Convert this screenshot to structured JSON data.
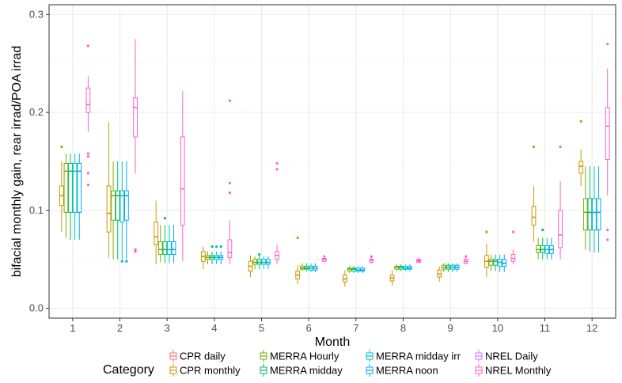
{
  "chart_data": {
    "type": "box",
    "xlabel": "Month",
    "ylabel": "bifacial monthly gain, rear irrad/POA irrad",
    "x_categories": [
      "1",
      "2",
      "3",
      "4",
      "5",
      "6",
      "7",
      "8",
      "9",
      "10",
      "11",
      "12"
    ],
    "ylim": [
      -0.01,
      0.31
    ],
    "y_ticks": [
      0.0,
      0.1,
      0.2,
      0.3
    ],
    "y_tick_labels": [
      "0.0",
      "0.1",
      "0.2",
      "0.3"
    ],
    "grid": true,
    "legend": {
      "title": "Category",
      "position": "bottom",
      "entries": [
        "CPR daily",
        "CPR monthly",
        "MERRA Hourly",
        "MERRA midday",
        "MERRA midday irr",
        "MERRA noon",
        "NREL Daily",
        "NREL Monthly"
      ]
    },
    "series": [
      {
        "name": "CPR daily",
        "color": "#F8766D",
        "boxes": []
      },
      {
        "name": "CPR monthly",
        "color": "#CD9600",
        "boxes": [
          {
            "month": "1",
            "q1": 0.105,
            "median": 0.115,
            "q3": 0.125,
            "whisker_low": 0.078,
            "whisker_high": 0.15,
            "outliers": [
              0.165
            ]
          },
          {
            "month": "2",
            "q1": 0.078,
            "median": 0.097,
            "q3": 0.125,
            "whisker_low": 0.052,
            "whisker_high": 0.19,
            "outliers": []
          },
          {
            "month": "3",
            "q1": 0.065,
            "median": 0.073,
            "q3": 0.088,
            "whisker_low": 0.045,
            "whisker_high": 0.11,
            "outliers": []
          },
          {
            "month": "4",
            "q1": 0.048,
            "median": 0.053,
            "q3": 0.058,
            "whisker_low": 0.04,
            "whisker_high": 0.063,
            "outliers": []
          },
          {
            "month": "5",
            "q1": 0.038,
            "median": 0.043,
            "q3": 0.048,
            "whisker_low": 0.032,
            "whisker_high": 0.054,
            "outliers": []
          },
          {
            "month": "6",
            "q1": 0.03,
            "median": 0.034,
            "q3": 0.038,
            "whisker_low": 0.025,
            "whisker_high": 0.044,
            "outliers": [
              0.072
            ]
          },
          {
            "month": "7",
            "q1": 0.027,
            "median": 0.03,
            "q3": 0.034,
            "whisker_low": 0.022,
            "whisker_high": 0.039,
            "outliers": []
          },
          {
            "month": "8",
            "q1": 0.028,
            "median": 0.031,
            "q3": 0.034,
            "whisker_low": 0.023,
            "whisker_high": 0.039,
            "outliers": []
          },
          {
            "month": "9",
            "q1": 0.032,
            "median": 0.035,
            "q3": 0.039,
            "whisker_low": 0.027,
            "whisker_high": 0.043,
            "outliers": []
          },
          {
            "month": "10",
            "q1": 0.042,
            "median": 0.048,
            "q3": 0.054,
            "whisker_low": 0.032,
            "whisker_high": 0.066,
            "outliers": [
              0.078
            ]
          },
          {
            "month": "11",
            "q1": 0.085,
            "median": 0.093,
            "q3": 0.104,
            "whisker_low": 0.068,
            "whisker_high": 0.125,
            "outliers": [
              0.165
            ]
          },
          {
            "month": "12",
            "q1": 0.138,
            "median": 0.145,
            "q3": 0.15,
            "whisker_low": 0.125,
            "whisker_high": 0.162,
            "outliers": [
              0.191
            ]
          }
        ]
      },
      {
        "name": "MERRA Hourly",
        "color": "#7CAE00",
        "boxes": [
          {
            "month": "1",
            "q1": 0.098,
            "median": 0.14,
            "q3": 0.148,
            "whisker_low": 0.072,
            "whisker_high": 0.158,
            "outliers": []
          },
          {
            "month": "2",
            "q1": 0.09,
            "median": 0.115,
            "q3": 0.12,
            "whisker_low": 0.05,
            "whisker_high": 0.15,
            "outliers": []
          },
          {
            "month": "3",
            "q1": 0.055,
            "median": 0.06,
            "q3": 0.068,
            "whisker_low": 0.047,
            "whisker_high": 0.085,
            "outliers": []
          },
          {
            "month": "4",
            "q1": 0.05,
            "median": 0.052,
            "q3": 0.054,
            "whisker_low": 0.045,
            "whisker_high": 0.058,
            "outliers": []
          },
          {
            "month": "5",
            "q1": 0.045,
            "median": 0.047,
            "q3": 0.05,
            "whisker_low": 0.04,
            "whisker_high": 0.053,
            "outliers": []
          },
          {
            "month": "6",
            "q1": 0.04,
            "median": 0.041,
            "q3": 0.043,
            "whisker_low": 0.038,
            "whisker_high": 0.046,
            "outliers": []
          },
          {
            "month": "7",
            "q1": 0.038,
            "median": 0.04,
            "q3": 0.041,
            "whisker_low": 0.036,
            "whisker_high": 0.043,
            "outliers": []
          },
          {
            "month": "8",
            "q1": 0.04,
            "median": 0.042,
            "q3": 0.043,
            "whisker_low": 0.038,
            "whisker_high": 0.045,
            "outliers": []
          },
          {
            "month": "9",
            "q1": 0.04,
            "median": 0.042,
            "q3": 0.044,
            "whisker_low": 0.037,
            "whisker_high": 0.046,
            "outliers": []
          },
          {
            "month": "10",
            "q1": 0.044,
            "median": 0.048,
            "q3": 0.05,
            "whisker_low": 0.038,
            "whisker_high": 0.055,
            "outliers": []
          },
          {
            "month": "11",
            "q1": 0.057,
            "median": 0.06,
            "q3": 0.064,
            "whisker_low": 0.05,
            "whisker_high": 0.072,
            "outliers": []
          },
          {
            "month": "12",
            "q1": 0.08,
            "median": 0.098,
            "q3": 0.112,
            "whisker_low": 0.06,
            "whisker_high": 0.145,
            "outliers": []
          }
        ]
      },
      {
        "name": "MERRA midday",
        "color": "#00BE67",
        "boxes": [
          {
            "month": "1",
            "q1": 0.098,
            "median": 0.14,
            "q3": 0.148,
            "whisker_low": 0.07,
            "whisker_high": 0.158,
            "outliers": []
          },
          {
            "month": "2",
            "q1": 0.09,
            "median": 0.115,
            "q3": 0.12,
            "whisker_low": 0.05,
            "whisker_high": 0.15,
            "outliers": []
          },
          {
            "month": "3",
            "q1": 0.055,
            "median": 0.06,
            "q3": 0.068,
            "whisker_low": 0.046,
            "whisker_high": 0.085,
            "outliers": [
              0.092
            ]
          },
          {
            "month": "4",
            "q1": 0.05,
            "median": 0.052,
            "q3": 0.054,
            "whisker_low": 0.045,
            "whisker_high": 0.058,
            "outliers": [
              0.063
            ]
          },
          {
            "month": "5",
            "q1": 0.045,
            "median": 0.047,
            "q3": 0.05,
            "whisker_low": 0.04,
            "whisker_high": 0.053,
            "outliers": [
              0.055
            ]
          },
          {
            "month": "6",
            "q1": 0.04,
            "median": 0.041,
            "q3": 0.043,
            "whisker_low": 0.038,
            "whisker_high": 0.046,
            "outliers": []
          },
          {
            "month": "7",
            "q1": 0.038,
            "median": 0.04,
            "q3": 0.041,
            "whisker_low": 0.036,
            "whisker_high": 0.043,
            "outliers": []
          },
          {
            "month": "8",
            "q1": 0.04,
            "median": 0.042,
            "q3": 0.043,
            "whisker_low": 0.038,
            "whisker_high": 0.045,
            "outliers": []
          },
          {
            "month": "9",
            "q1": 0.04,
            "median": 0.042,
            "q3": 0.044,
            "whisker_low": 0.037,
            "whisker_high": 0.046,
            "outliers": []
          },
          {
            "month": "10",
            "q1": 0.044,
            "median": 0.048,
            "q3": 0.05,
            "whisker_low": 0.038,
            "whisker_high": 0.055,
            "outliers": []
          },
          {
            "month": "11",
            "q1": 0.057,
            "median": 0.06,
            "q3": 0.064,
            "whisker_low": 0.05,
            "whisker_high": 0.072,
            "outliers": [
              0.08
            ]
          },
          {
            "month": "12",
            "q1": 0.08,
            "median": 0.098,
            "q3": 0.112,
            "whisker_low": 0.058,
            "whisker_high": 0.145,
            "outliers": []
          }
        ]
      },
      {
        "name": "MERRA midday irr",
        "color": "#00BFC4",
        "boxes": [
          {
            "month": "1",
            "q1": 0.098,
            "median": 0.14,
            "q3": 0.148,
            "whisker_low": 0.07,
            "whisker_high": 0.158,
            "outliers": []
          },
          {
            "month": "2",
            "q1": 0.088,
            "median": 0.115,
            "q3": 0.12,
            "whisker_low": 0.05,
            "whisker_high": 0.15,
            "outliers": [
              0.048
            ]
          },
          {
            "month": "3",
            "q1": 0.055,
            "median": 0.06,
            "q3": 0.068,
            "whisker_low": 0.046,
            "whisker_high": 0.085,
            "outliers": []
          },
          {
            "month": "4",
            "q1": 0.05,
            "median": 0.052,
            "q3": 0.054,
            "whisker_low": 0.045,
            "whisker_high": 0.058,
            "outliers": [
              0.063
            ]
          },
          {
            "month": "5",
            "q1": 0.045,
            "median": 0.047,
            "q3": 0.05,
            "whisker_low": 0.04,
            "whisker_high": 0.053,
            "outliers": []
          },
          {
            "month": "6",
            "q1": 0.039,
            "median": 0.041,
            "q3": 0.043,
            "whisker_low": 0.037,
            "whisker_high": 0.046,
            "outliers": []
          },
          {
            "month": "7",
            "q1": 0.038,
            "median": 0.039,
            "q3": 0.041,
            "whisker_low": 0.036,
            "whisker_high": 0.043,
            "outliers": []
          },
          {
            "month": "8",
            "q1": 0.04,
            "median": 0.041,
            "q3": 0.043,
            "whisker_low": 0.038,
            "whisker_high": 0.045,
            "outliers": []
          },
          {
            "month": "9",
            "q1": 0.04,
            "median": 0.042,
            "q3": 0.044,
            "whisker_low": 0.037,
            "whisker_high": 0.046,
            "outliers": []
          },
          {
            "month": "10",
            "q1": 0.043,
            "median": 0.047,
            "q3": 0.05,
            "whisker_low": 0.037,
            "whisker_high": 0.055,
            "outliers": []
          },
          {
            "month": "11",
            "q1": 0.056,
            "median": 0.06,
            "q3": 0.064,
            "whisker_low": 0.05,
            "whisker_high": 0.072,
            "outliers": []
          },
          {
            "month": "12",
            "q1": 0.08,
            "median": 0.098,
            "q3": 0.112,
            "whisker_low": 0.057,
            "whisker_high": 0.145,
            "outliers": []
          }
        ]
      },
      {
        "name": "MERRA noon",
        "color": "#00A9FF",
        "boxes": [
          {
            "month": "1",
            "q1": 0.098,
            "median": 0.14,
            "q3": 0.148,
            "whisker_low": 0.07,
            "whisker_high": 0.158,
            "outliers": []
          },
          {
            "month": "2",
            "q1": 0.09,
            "median": 0.115,
            "q3": 0.12,
            "whisker_low": 0.05,
            "whisker_high": 0.15,
            "outliers": [
              0.048
            ]
          },
          {
            "month": "3",
            "q1": 0.055,
            "median": 0.06,
            "q3": 0.068,
            "whisker_low": 0.046,
            "whisker_high": 0.085,
            "outliers": []
          },
          {
            "month": "4",
            "q1": 0.05,
            "median": 0.052,
            "q3": 0.054,
            "whisker_low": 0.045,
            "whisker_high": 0.058,
            "outliers": [
              0.063
            ]
          },
          {
            "month": "5",
            "q1": 0.045,
            "median": 0.047,
            "q3": 0.05,
            "whisker_low": 0.04,
            "whisker_high": 0.053,
            "outliers": []
          },
          {
            "month": "6",
            "q1": 0.039,
            "median": 0.041,
            "q3": 0.043,
            "whisker_low": 0.037,
            "whisker_high": 0.046,
            "outliers": []
          },
          {
            "month": "7",
            "q1": 0.038,
            "median": 0.039,
            "q3": 0.041,
            "whisker_low": 0.036,
            "whisker_high": 0.043,
            "outliers": []
          },
          {
            "month": "8",
            "q1": 0.04,
            "median": 0.041,
            "q3": 0.043,
            "whisker_low": 0.038,
            "whisker_high": 0.045,
            "outliers": []
          },
          {
            "month": "9",
            "q1": 0.04,
            "median": 0.042,
            "q3": 0.044,
            "whisker_low": 0.037,
            "whisker_high": 0.046,
            "outliers": []
          },
          {
            "month": "10",
            "q1": 0.043,
            "median": 0.046,
            "q3": 0.05,
            "whisker_low": 0.037,
            "whisker_high": 0.055,
            "outliers": []
          },
          {
            "month": "11",
            "q1": 0.056,
            "median": 0.06,
            "q3": 0.064,
            "whisker_low": 0.05,
            "whisker_high": 0.072,
            "outliers": []
          },
          {
            "month": "12",
            "q1": 0.08,
            "median": 0.098,
            "q3": 0.112,
            "whisker_low": 0.057,
            "whisker_high": 0.145,
            "outliers": []
          }
        ]
      },
      {
        "name": "NREL Daily",
        "color": "#C77CFF",
        "boxes": []
      },
      {
        "name": "NREL Monthly",
        "color": "#FF61CC",
        "boxes": [
          {
            "month": "1",
            "q1": 0.2,
            "median": 0.208,
            "q3": 0.225,
            "whisker_low": 0.18,
            "whisker_high": 0.237,
            "outliers": [
              0.268,
              0.158,
              0.155,
              0.138,
              0.126
            ]
          },
          {
            "month": "2",
            "q1": 0.175,
            "median": 0.205,
            "q3": 0.215,
            "whisker_low": 0.138,
            "whisker_high": 0.275,
            "outliers": [
              0.06,
              0.058
            ]
          },
          {
            "month": "3",
            "q1": 0.085,
            "median": 0.122,
            "q3": 0.175,
            "whisker_low": 0.048,
            "whisker_high": 0.222,
            "outliers": []
          },
          {
            "month": "4",
            "q1": 0.052,
            "median": 0.057,
            "q3": 0.07,
            "whisker_low": 0.045,
            "whisker_high": 0.09,
            "outliers": [
              0.212,
              0.128,
              0.118
            ]
          },
          {
            "month": "5",
            "q1": 0.05,
            "median": 0.054,
            "q3": 0.058,
            "whisker_low": 0.045,
            "whisker_high": 0.065,
            "outliers": [
              0.148,
              0.142
            ]
          },
          {
            "month": "6",
            "q1": 0.048,
            "median": 0.05,
            "q3": 0.051,
            "whisker_low": 0.047,
            "whisker_high": 0.052,
            "outliers": [
              0.053
            ]
          },
          {
            "month": "7",
            "q1": 0.047,
            "median": 0.049,
            "q3": 0.05,
            "whisker_low": 0.046,
            "whisker_high": 0.052,
            "outliers": [
              0.053
            ]
          },
          {
            "month": "8",
            "q1": 0.047,
            "median": 0.049,
            "q3": 0.05,
            "whisker_low": 0.046,
            "whisker_high": 0.052,
            "outliers": [
              0.048
            ]
          },
          {
            "month": "9",
            "q1": 0.046,
            "median": 0.048,
            "q3": 0.05,
            "whisker_low": 0.045,
            "whisker_high": 0.052,
            "outliers": [
              0.053
            ]
          },
          {
            "month": "10",
            "q1": 0.048,
            "median": 0.051,
            "q3": 0.055,
            "whisker_low": 0.045,
            "whisker_high": 0.06,
            "outliers": [
              0.078
            ]
          },
          {
            "month": "11",
            "q1": 0.062,
            "median": 0.075,
            "q3": 0.1,
            "whisker_low": 0.05,
            "whisker_high": 0.13,
            "outliers": [
              0.165
            ]
          },
          {
            "month": "12",
            "q1": 0.152,
            "median": 0.186,
            "q3": 0.205,
            "whisker_low": 0.115,
            "whisker_high": 0.245,
            "outliers": [
              0.27,
              0.08,
              0.07
            ]
          }
        ]
      }
    ]
  }
}
